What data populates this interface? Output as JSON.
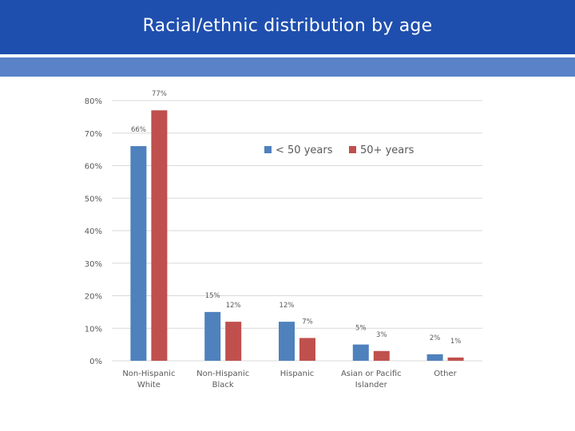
{
  "header": {
    "title": "Racial/ethnic distribution by age"
  },
  "colors": {
    "header_bg": "#1f4fae",
    "subband": "#5a82c9",
    "series_1": "#4f81bd",
    "series_2": "#c0504d",
    "gridline": "#d9d9d9",
    "text": "#595959"
  },
  "chart_data": {
    "type": "bar",
    "title": "",
    "xlabel": "",
    "ylabel": "",
    "ylim": [
      0,
      80
    ],
    "yticks": [
      "0%",
      "10%",
      "20%",
      "30%",
      "40%",
      "50%",
      "60%",
      "70%",
      "80%"
    ],
    "grid": true,
    "legend_position": "top-right",
    "categories": [
      [
        "Non-Hispanic",
        "White"
      ],
      [
        "Non-Hispanic",
        "Black"
      ],
      [
        "Hispanic"
      ],
      [
        "Asian or Pacific",
        "Islander"
      ],
      [
        "Other"
      ]
    ],
    "series": [
      {
        "name": "< 50 years",
        "values": [
          66,
          15,
          12,
          5,
          2
        ],
        "labels": [
          "66%",
          "15%",
          "12%",
          "5%",
          "2%"
        ]
      },
      {
        "name": "50+ years",
        "values": [
          77,
          12,
          7,
          3,
          1
        ],
        "labels": [
          "77%",
          "12%",
          "7%",
          "3%",
          "1%"
        ]
      }
    ]
  }
}
